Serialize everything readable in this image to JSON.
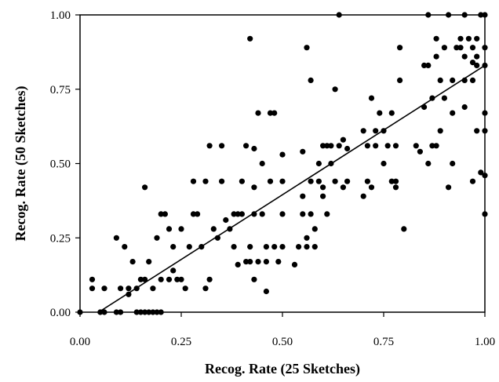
{
  "chart_data": {
    "type": "scatter",
    "title": "",
    "xlabel": "Recog. Rate (25 Sketches)",
    "ylabel": "Recog. Rate (50 Sketches)",
    "xlim": [
      0,
      1
    ],
    "ylim": [
      0,
      1
    ],
    "xticks": [
      "0.00",
      "0.25",
      "0.50",
      "0.75",
      "1.00"
    ],
    "yticks": [
      "0.00",
      "0.25",
      "0.50",
      "0.75",
      "1.00"
    ],
    "grid": false,
    "legend": "none",
    "marker_color": "#000000",
    "series": [
      {
        "points": [
          [
            0.0,
            0.0
          ],
          [
            0.05,
            0.0
          ],
          [
            0.06,
            0.0
          ],
          [
            0.09,
            0.0
          ],
          [
            0.1,
            0.0
          ],
          [
            0.14,
            0.0
          ],
          [
            0.15,
            0.0
          ],
          [
            0.16,
            0.0
          ],
          [
            0.17,
            0.0
          ],
          [
            0.18,
            0.0
          ],
          [
            0.19,
            0.0
          ],
          [
            0.2,
            0.0
          ],
          [
            0.03,
            0.11
          ],
          [
            0.03,
            0.08
          ],
          [
            0.06,
            0.08
          ],
          [
            0.09,
            0.25
          ],
          [
            0.1,
            0.08
          ],
          [
            0.11,
            0.22
          ],
          [
            0.12,
            0.06
          ],
          [
            0.12,
            0.08
          ],
          [
            0.13,
            0.17
          ],
          [
            0.14,
            0.08
          ],
          [
            0.15,
            0.11
          ],
          [
            0.16,
            0.42
          ],
          [
            0.16,
            0.11
          ],
          [
            0.17,
            0.17
          ],
          [
            0.18,
            0.08
          ],
          [
            0.19,
            0.25
          ],
          [
            0.2,
            0.11
          ],
          [
            0.2,
            0.33
          ],
          [
            0.21,
            0.33
          ],
          [
            0.22,
            0.28
          ],
          [
            0.22,
            0.11
          ],
          [
            0.23,
            0.14
          ],
          [
            0.23,
            0.22
          ],
          [
            0.24,
            0.11
          ],
          [
            0.25,
            0.28
          ],
          [
            0.25,
            0.11
          ],
          [
            0.26,
            0.08
          ],
          [
            0.27,
            0.22
          ],
          [
            0.28,
            0.33
          ],
          [
            0.28,
            0.44
          ],
          [
            0.29,
            0.33
          ],
          [
            0.3,
            0.22
          ],
          [
            0.31,
            0.08
          ],
          [
            0.31,
            0.44
          ],
          [
            0.32,
            0.56
          ],
          [
            0.32,
            0.11
          ],
          [
            0.33,
            0.28
          ],
          [
            0.34,
            0.25
          ],
          [
            0.35,
            0.56
          ],
          [
            0.35,
            0.44
          ],
          [
            0.36,
            0.31
          ],
          [
            0.37,
            0.28
          ],
          [
            0.38,
            0.33
          ],
          [
            0.38,
            0.22
          ],
          [
            0.39,
            0.33
          ],
          [
            0.39,
            0.16
          ],
          [
            0.4,
            0.33
          ],
          [
            0.4,
            0.44
          ],
          [
            0.41,
            0.17
          ],
          [
            0.41,
            0.56
          ],
          [
            0.42,
            0.17
          ],
          [
            0.42,
            0.22
          ],
          [
            0.42,
            0.92
          ],
          [
            0.43,
            0.55
          ],
          [
            0.43,
            0.42
          ],
          [
            0.43,
            0.33
          ],
          [
            0.43,
            0.11
          ],
          [
            0.44,
            0.67
          ],
          [
            0.44,
            0.17
          ],
          [
            0.45,
            0.5
          ],
          [
            0.45,
            0.33
          ],
          [
            0.46,
            0.22
          ],
          [
            0.46,
            0.17
          ],
          [
            0.46,
            0.07
          ],
          [
            0.47,
            0.44
          ],
          [
            0.47,
            0.67
          ],
          [
            0.48,
            0.67
          ],
          [
            0.48,
            0.22
          ],
          [
            0.49,
            0.17
          ],
          [
            0.5,
            0.53
          ],
          [
            0.5,
            0.44
          ],
          [
            0.5,
            0.33
          ],
          [
            0.5,
            0.22
          ],
          [
            0.53,
            0.16
          ],
          [
            0.54,
            0.22
          ],
          [
            0.55,
            0.54
          ],
          [
            0.55,
            0.39
          ],
          [
            0.55,
            0.33
          ],
          [
            0.56,
            0.89
          ],
          [
            0.56,
            0.25
          ],
          [
            0.56,
            0.22
          ],
          [
            0.57,
            0.78
          ],
          [
            0.57,
            0.44
          ],
          [
            0.57,
            0.33
          ],
          [
            0.58,
            0.22
          ],
          [
            0.58,
            0.28
          ],
          [
            0.59,
            0.5
          ],
          [
            0.59,
            0.44
          ],
          [
            0.6,
            0.56
          ],
          [
            0.6,
            0.42
          ],
          [
            0.6,
            0.39
          ],
          [
            0.61,
            0.33
          ],
          [
            0.61,
            0.56
          ],
          [
            0.62,
            0.56
          ],
          [
            0.62,
            0.5
          ],
          [
            0.63,
            0.75
          ],
          [
            0.63,
            0.44
          ],
          [
            0.64,
            1.0
          ],
          [
            0.64,
            0.56
          ],
          [
            0.65,
            0.58
          ],
          [
            0.65,
            0.42
          ],
          [
            0.66,
            0.44
          ],
          [
            0.66,
            0.55
          ],
          [
            0.7,
            0.39
          ],
          [
            0.7,
            0.61
          ],
          [
            0.71,
            0.44
          ],
          [
            0.71,
            0.56
          ],
          [
            0.72,
            0.42
          ],
          [
            0.72,
            0.72
          ],
          [
            0.73,
            0.56
          ],
          [
            0.73,
            0.61
          ],
          [
            0.74,
            0.67
          ],
          [
            0.75,
            0.61
          ],
          [
            0.75,
            0.5
          ],
          [
            0.76,
            0.56
          ],
          [
            0.77,
            0.44
          ],
          [
            0.77,
            0.67
          ],
          [
            0.78,
            0.44
          ],
          [
            0.78,
            0.56
          ],
          [
            0.78,
            0.42
          ],
          [
            0.79,
            0.89
          ],
          [
            0.79,
            0.78
          ],
          [
            0.8,
            0.28
          ],
          [
            0.83,
            0.56
          ],
          [
            0.84,
            0.54
          ],
          [
            0.85,
            0.69
          ],
          [
            0.85,
            0.83
          ],
          [
            0.86,
            0.5
          ],
          [
            0.86,
            0.83
          ],
          [
            0.86,
            1.0
          ],
          [
            0.87,
            0.72
          ],
          [
            0.87,
            0.56
          ],
          [
            0.88,
            0.86
          ],
          [
            0.88,
            0.92
          ],
          [
            0.88,
            0.56
          ],
          [
            0.89,
            0.78
          ],
          [
            0.89,
            0.61
          ],
          [
            0.9,
            0.89
          ],
          [
            0.9,
            0.72
          ],
          [
            0.91,
            1.0
          ],
          [
            0.91,
            0.42
          ],
          [
            0.92,
            0.78
          ],
          [
            0.92,
            0.67
          ],
          [
            0.92,
            0.5
          ],
          [
            0.93,
            0.89
          ],
          [
            0.94,
            0.92
          ],
          [
            0.94,
            0.89
          ],
          [
            0.95,
            0.78
          ],
          [
            0.95,
            0.86
          ],
          [
            0.95,
            0.69
          ],
          [
            0.95,
            1.0
          ],
          [
            0.96,
            0.92
          ],
          [
            0.97,
            0.89
          ],
          [
            0.97,
            0.84
          ],
          [
            0.97,
            0.78
          ],
          [
            0.97,
            0.44
          ],
          [
            0.98,
            0.92
          ],
          [
            0.98,
            0.86
          ],
          [
            0.98,
            0.83
          ],
          [
            0.98,
            0.61
          ],
          [
            0.99,
            0.47
          ],
          [
            0.99,
            1.0
          ],
          [
            1.0,
            1.0
          ],
          [
            1.0,
            0.89
          ],
          [
            1.0,
            0.83
          ],
          [
            1.0,
            0.67
          ],
          [
            1.0,
            0.61
          ],
          [
            1.0,
            0.46
          ],
          [
            1.0,
            0.33
          ]
        ]
      }
    ],
    "trendline": {
      "x": [
        0.0,
        1.0
      ],
      "y": [
        -0.04,
        0.83
      ]
    }
  }
}
